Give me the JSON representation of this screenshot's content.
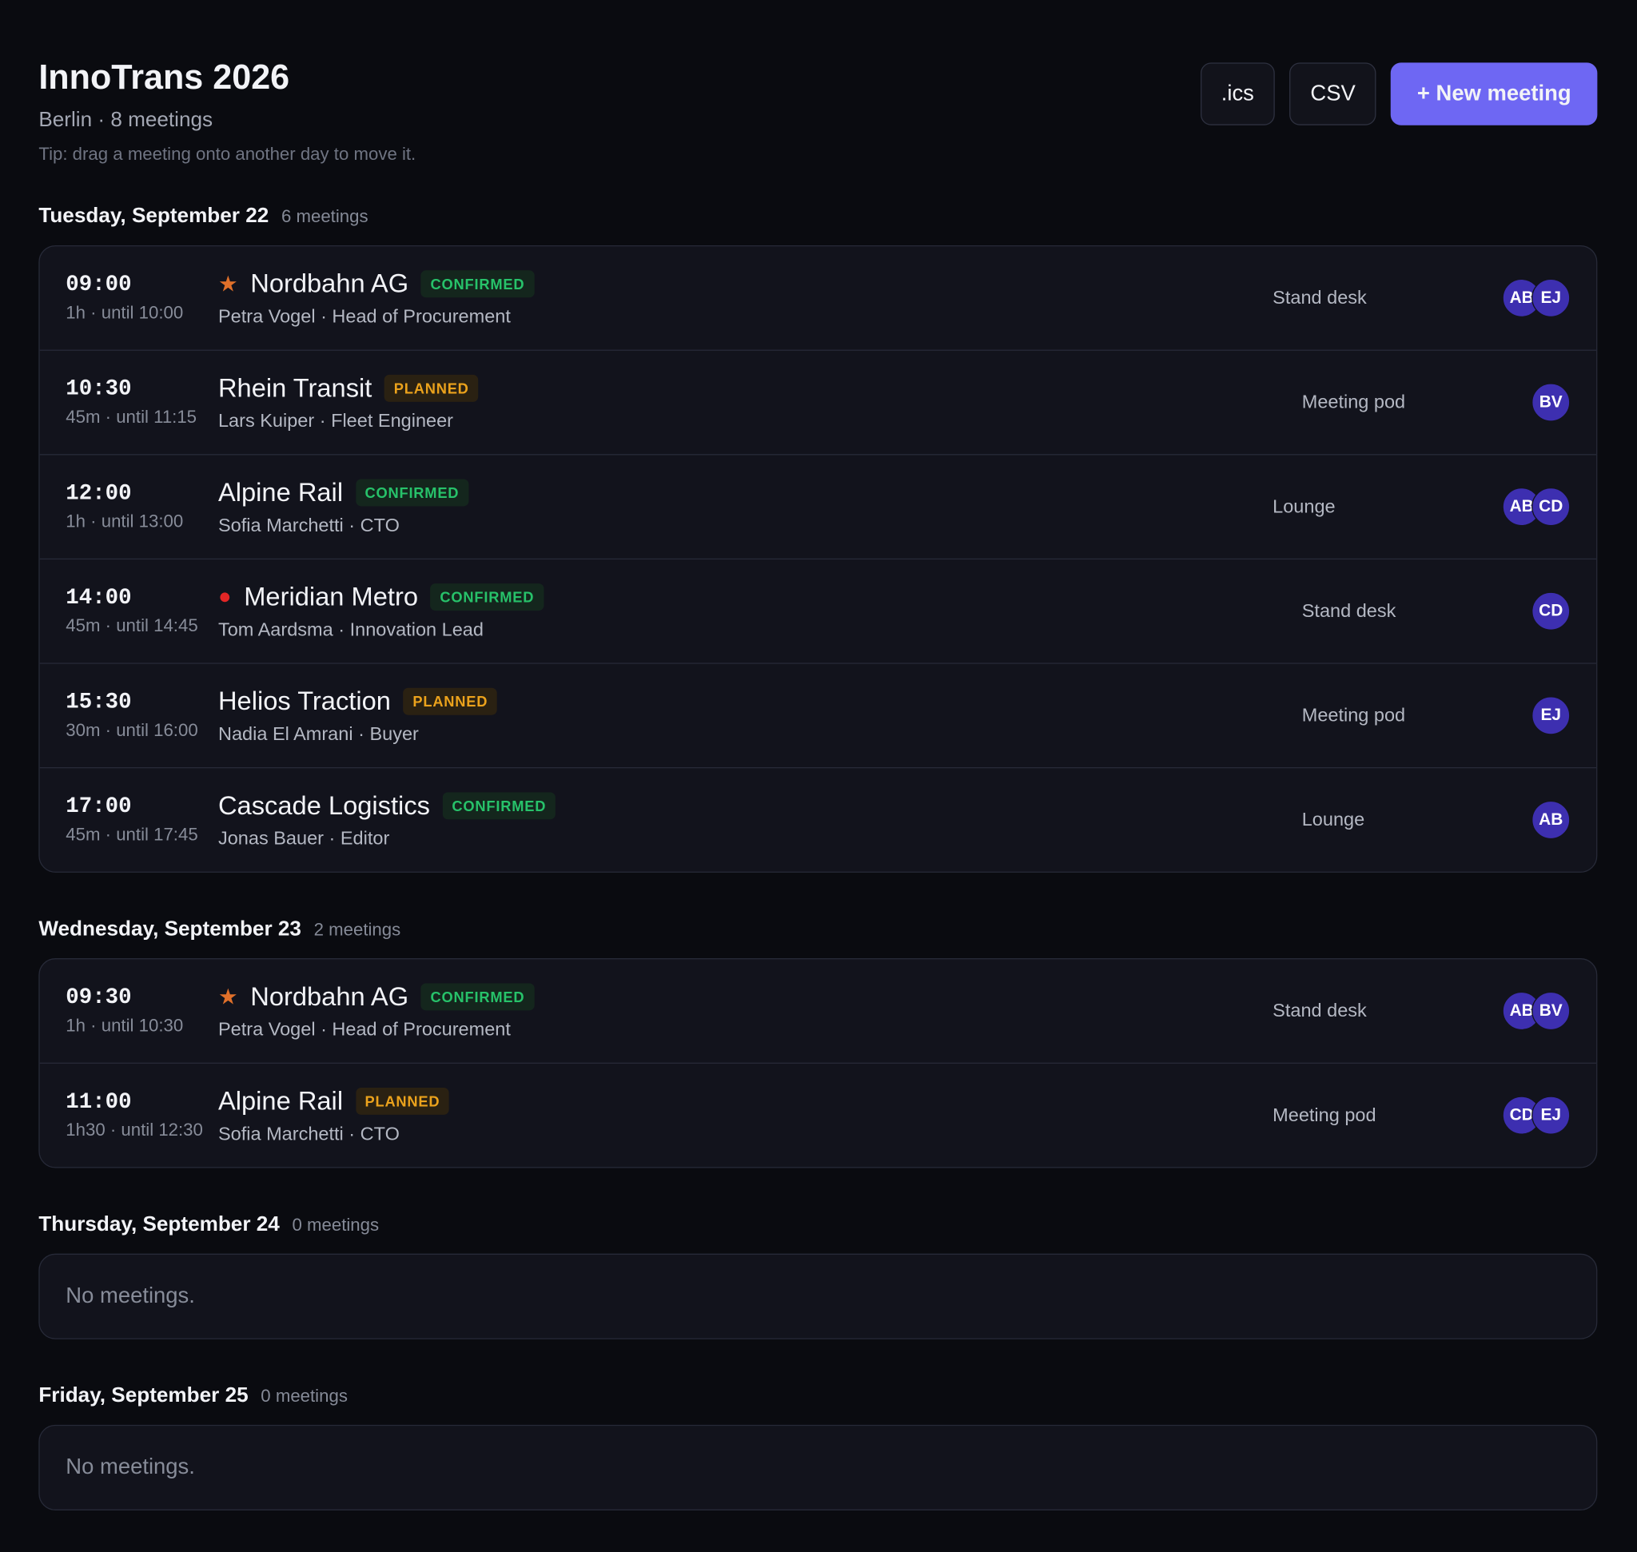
{
  "header": {
    "title": "InnoTrans 2026",
    "subtitle": "Berlin · 8 meetings",
    "tip": "Tip: drag a meeting onto another day to move it."
  },
  "buttons": [
    ".ics",
    "CSV",
    "+ New meeting"
  ],
  "days": [
    {
      "label": "Tuesday, September 22",
      "count": "6 meetings",
      "meetings": [
        {
          "time": "09:00",
          "duration": "1h · until 10:00",
          "icon": "★",
          "icon_color": "#e0702a",
          "company": "Nordbahn AG",
          "status": "CONFIRMED",
          "contact": "Petra Vogel · Head of Procurement",
          "location": "Stand desk",
          "attendees": [
            "AB",
            "EJ"
          ]
        },
        {
          "time": "10:30",
          "duration": "45m · until 11:15",
          "company": "Rhein Transit",
          "status": "PLANNED",
          "contact": "Lars Kuiper · Fleet Engineer",
          "location": "Meeting pod",
          "attendees": [
            "BV"
          ]
        },
        {
          "time": "12:00",
          "duration": "1h · until 13:00",
          "company": "Alpine Rail",
          "status": "CONFIRMED",
          "contact": "Sofia Marchetti · CTO",
          "location": "Lounge",
          "attendees": [
            "AB",
            "CD"
          ]
        },
        {
          "time": "14:00",
          "duration": "45m · until 14:45",
          "icon": "●",
          "icon_color": "#e32626",
          "company": "Meridian Metro",
          "status": "CONFIRMED",
          "contact": "Tom Aardsma · Innovation Lead",
          "location": "Stand desk",
          "attendees": [
            "CD"
          ]
        },
        {
          "time": "15:30",
          "duration": "30m · until 16:00",
          "company": "Helios Traction",
          "status": "PLANNED",
          "contact": "Nadia El Amrani · Buyer",
          "location": "Meeting pod",
          "attendees": [
            "EJ"
          ]
        },
        {
          "time": "17:00",
          "duration": "45m · until 17:45",
          "company": "Cascade Logistics",
          "status": "CONFIRMED",
          "contact": "Jonas Bauer · Editor",
          "location": "Lounge",
          "attendees": [
            "AB"
          ]
        }
      ]
    },
    {
      "label": "Wednesday, September 23",
      "count": "2 meetings",
      "meetings": [
        {
          "time": "09:30",
          "duration": "1h · until 10:30",
          "icon": "★",
          "icon_color": "#e0702a",
          "company": "Nordbahn AG",
          "status": "CONFIRMED",
          "contact": "Petra Vogel · Head of Procurement",
          "location": "Stand desk",
          "attendees": [
            "AB",
            "BV"
          ]
        },
        {
          "time": "11:00",
          "duration": "1h30 · until 12:30",
          "company": "Alpine Rail",
          "status": "PLANNED",
          "contact": "Sofia Marchetti · CTO",
          "location": "Meeting pod",
          "attendees": [
            "CD",
            "EJ"
          ]
        }
      ]
    },
    {
      "label": "Thursday, September 24",
      "count": "0 meetings",
      "meetings": [],
      "empty": "No meetings."
    },
    {
      "label": "Friday, September 25",
      "count": "0 meetings",
      "meetings": [],
      "empty": "No meetings."
    }
  ]
}
